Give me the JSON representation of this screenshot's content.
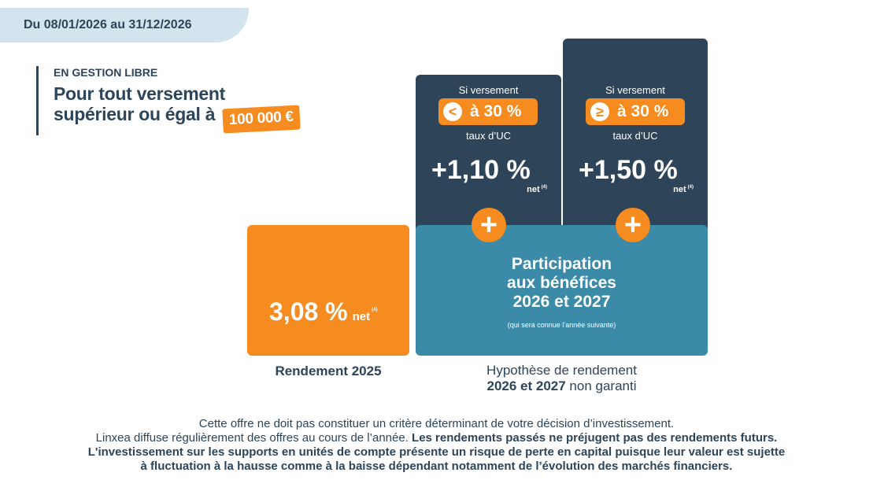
{
  "banner": {
    "date_range": "Du 08/01/2026 au 31/12/2026"
  },
  "header": {
    "mode": "EN GESTION LIBRE",
    "title_line1": "Pour tout versement",
    "title_line2": "supérieur ou égal à",
    "amount": "100 000 €"
  },
  "rendement_2025": {
    "value": "3,08 %",
    "net": "net",
    "ref": "(4)",
    "label": "Rendement 2025"
  },
  "bonus_low": {
    "condition": "Si versement",
    "icon": "less-than-icon",
    "symbol": "<",
    "threshold": "à 30 %",
    "unit_label": "taux d’UC",
    "value": "+1,10 %",
    "net": "net",
    "ref": "(4)"
  },
  "bonus_high": {
    "condition": "Si versement",
    "icon": "greater-or-equal-icon",
    "symbol": "≥",
    "threshold": "à 30 %",
    "unit_label": "taux d’UC",
    "value": "+1,50 %",
    "net": "net",
    "ref": "(4)"
  },
  "participation": {
    "line1": "Participation",
    "line2": "aux bénéfices",
    "line3": "2026 et 2027",
    "note": "(qui sera connue l’année suivante)"
  },
  "hypothese": {
    "line1": "Hypothèse de rendement",
    "line2_bold": "2026 et 2027",
    "line2_rest": " non garanti"
  },
  "disclaimer": {
    "line1": "Cette offre ne doit pas constituer un critère déterminant de votre décision d’investissement.",
    "line2_regular": "Linxea diffuse régulièrement des offres au cours de l’année. ",
    "line2_bold": "Les rendements passés ne préjugent pas des rendements futurs.",
    "line3": "L'investissement sur les supports en unités de compte présente un risque de perte en capital puisque leur valeur est sujette",
    "line4": "à fluctuation à la hausse comme à la baisse dépendant notamment de l’évolution des marchés financiers."
  },
  "colors": {
    "navy": "#2d4459",
    "orange": "#f68b1f",
    "teal": "#3a8aa8",
    "banner": "#d3e4ee"
  }
}
